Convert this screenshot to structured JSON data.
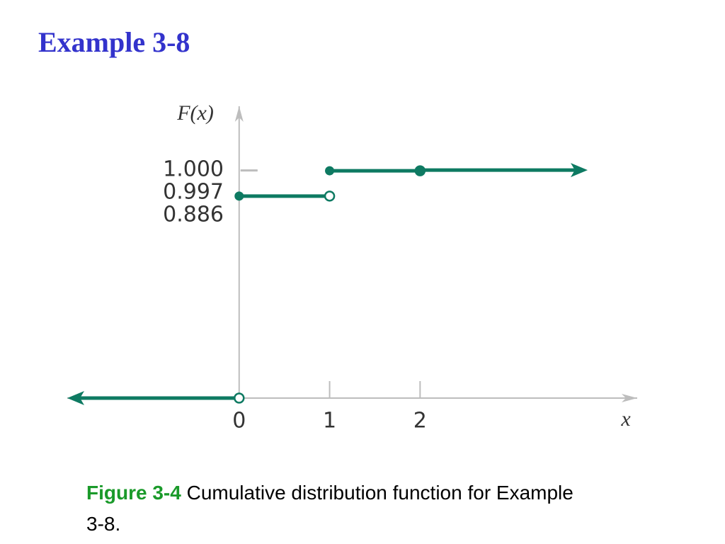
{
  "slide_title": "Example 3-8",
  "chart_data": {
    "type": "step",
    "x_label": "x",
    "y_label": "F(x)",
    "x": [
      0,
      1,
      2
    ],
    "values": [
      0.886,
      0.997,
      1
    ],
    "left_value": 0,
    "color": "#0e7a62",
    "xlim": [
      -1.9,
      4.4
    ],
    "xticks": [
      0,
      1,
      2
    ],
    "ylim": [
      0,
      1.28
    ],
    "yticks": [
      0.886,
      0.997,
      {
        "value": 1,
        "label": "1.000"
      }
    ]
  },
  "caption": {
    "label": "Figure 3-4",
    "text": "Cumulative distribution function for Example 3-8."
  }
}
